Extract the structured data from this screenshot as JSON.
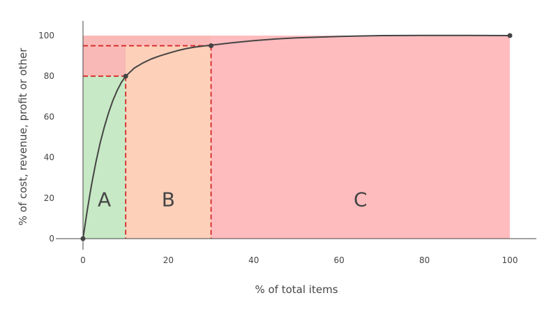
{
  "chart_data": {
    "type": "area",
    "title": "",
    "xlabel": "% of total items",
    "ylabel": "% of cost, revenue, profit or other",
    "xlim": [
      0,
      100
    ],
    "ylim": [
      0,
      100
    ],
    "x_ticks": [
      0,
      20,
      40,
      60,
      80,
      100
    ],
    "y_ticks": [
      0,
      20,
      40,
      60,
      80,
      100
    ],
    "grid": false,
    "zones": [
      {
        "label": "A",
        "x_start": 0,
        "x_end": 10,
        "y_top": 80,
        "color": "#c7e9c5"
      },
      {
        "label": "B",
        "x_start": 10,
        "x_end": 30,
        "y_top": 95,
        "color": "#fdd0b9"
      },
      {
        "label": "C",
        "x_start": 30,
        "x_end": 100,
        "y_top": 100,
        "color": "#ffbcbe"
      }
    ],
    "background_band": {
      "y_from": 80,
      "y_to": 100,
      "color": "#f9b9b6"
    },
    "threshold_points": [
      {
        "x": 10,
        "y": 80
      },
      {
        "x": 30,
        "y": 95
      }
    ],
    "endpoints": [
      {
        "x": 0,
        "y": 0
      },
      {
        "x": 100,
        "y": 100
      }
    ],
    "curve": {
      "color": "#444444",
      "x": [
        0,
        1,
        2,
        3,
        4,
        5,
        6,
        7,
        8,
        9,
        10,
        12,
        14,
        16,
        18,
        20,
        22,
        24,
        26,
        28,
        30,
        35,
        40,
        45,
        50,
        60,
        70,
        80,
        90,
        100
      ],
      "y": [
        0,
        14,
        26.5,
        37.5,
        47,
        55,
        62,
        68,
        73,
        77,
        80,
        84,
        86.5,
        88.5,
        90,
        91.3,
        92.5,
        93.5,
        94.3,
        94.8,
        95.3,
        96.5,
        97.5,
        98.3,
        98.9,
        99.6,
        100,
        100.1,
        100.1,
        100
      ]
    },
    "dash_color": "#d62728"
  }
}
